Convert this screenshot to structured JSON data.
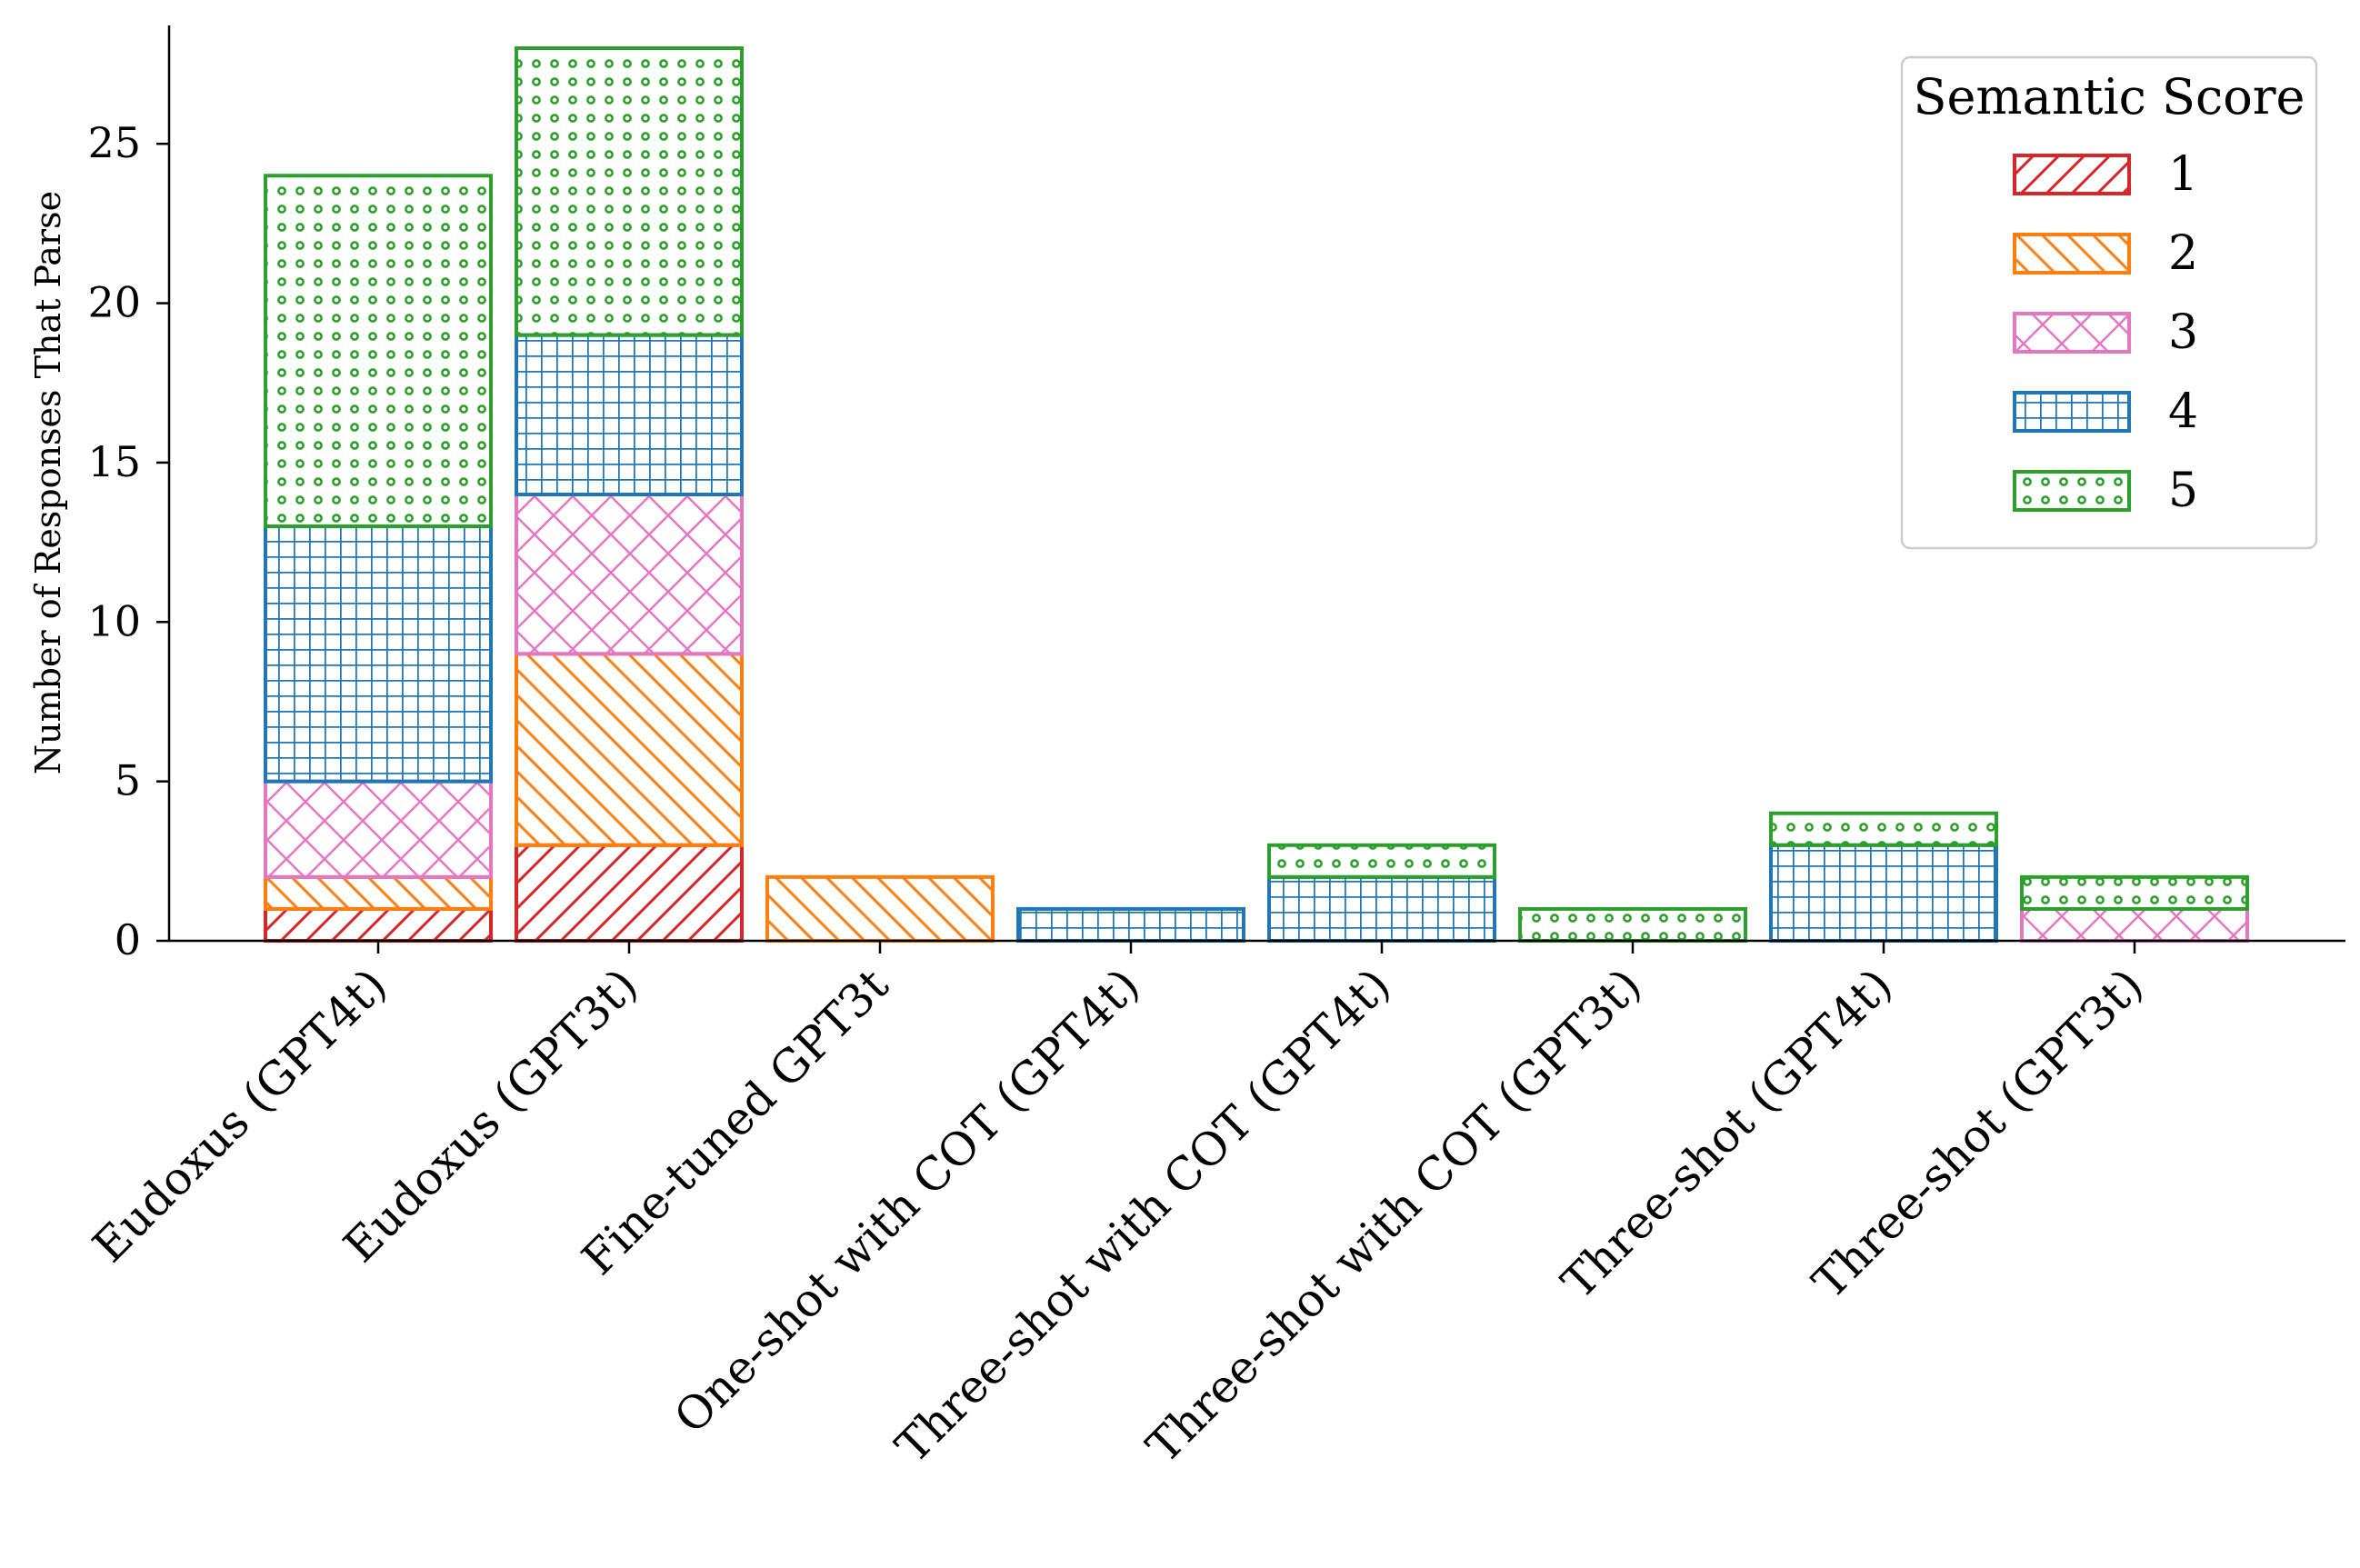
{
  "chart_data": {
    "type": "bar",
    "stacked": true,
    "title": "",
    "xlabel": "",
    "ylabel": "Number of Responses That Parse",
    "ylim": [
      0,
      29
    ],
    "yticks": [
      0,
      5,
      10,
      15,
      20,
      25
    ],
    "categories": [
      "Eudoxus (GPT4t)",
      "Eudoxus (GPT3t)",
      "Fine-tuned GPT3t",
      "One-shot with COT (GPT4t)",
      "Three-shot with COT (GPT4t)",
      "Three-shot with COT (GPT3t)",
      "Three-shot (GPT4t)",
      "Three-shot (GPT3t)"
    ],
    "series": [
      {
        "name": "1",
        "color": "#d62728",
        "hatch": "forward-diagonal",
        "values": [
          1,
          3,
          0,
          0,
          0,
          0,
          0,
          0
        ]
      },
      {
        "name": "2",
        "color": "#ff7f0e",
        "hatch": "back-diagonal",
        "values": [
          1,
          6,
          2,
          0,
          0,
          0,
          0,
          0
        ]
      },
      {
        "name": "3",
        "color": "#e377c2",
        "hatch": "cross-diagonal",
        "values": [
          3,
          5,
          0,
          0,
          0,
          0,
          0,
          1
        ]
      },
      {
        "name": "4",
        "color": "#1f77b4",
        "hatch": "grid",
        "values": [
          8,
          5,
          0,
          1,
          2,
          0,
          3,
          0
        ]
      },
      {
        "name": "5",
        "color": "#2ca02c",
        "hatch": "circles",
        "values": [
          11,
          9,
          0,
          0,
          1,
          1,
          1,
          1
        ]
      }
    ],
    "legend": {
      "title": "Semantic Score",
      "position": "top-right"
    },
    "grid": false
  }
}
